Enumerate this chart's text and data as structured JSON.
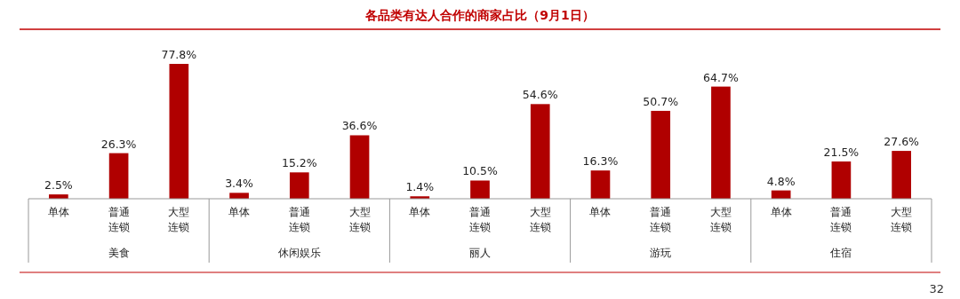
{
  "chart_data": {
    "type": "bar",
    "title": "各品类有达人合作的商家占比（9月1日）",
    "categories": [
      "单体",
      "普通连锁",
      "大型连锁",
      "单体",
      "普通连锁",
      "大型连锁",
      "单体",
      "普通连锁",
      "大型连锁",
      "单体",
      "普通连锁",
      "大型连锁",
      "单体",
      "普通连锁",
      "大型连锁"
    ],
    "values": [
      2.5,
      26.3,
      77.8,
      3.4,
      15.2,
      36.6,
      1.4,
      10.5,
      54.6,
      16.3,
      50.7,
      64.7,
      4.8,
      21.5,
      27.6
    ],
    "value_labels": [
      "2.5%",
      "26.3%",
      "77.8%",
      "3.4%",
      "15.2%",
      "36.6%",
      "1.4%",
      "10.5%",
      "54.6%",
      "16.3%",
      "50.7%",
      "64.7%",
      "4.8%",
      "21.5%",
      "27.6%"
    ],
    "color": "#b00000",
    "annotations": [
      "美食",
      "休闲娱乐",
      "丽人",
      "游玩",
      "住宿",
      "32"
    ]
  }
}
